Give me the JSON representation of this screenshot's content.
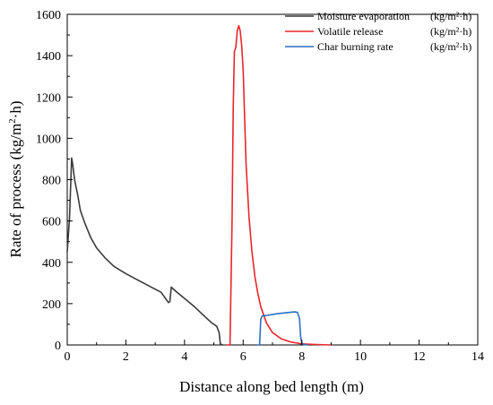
{
  "chart_data": {
    "type": "line",
    "xlabel": "Distance along bed length (m)",
    "ylabel_main": "Rate of process (kg/m",
    "ylabel_sup": "2",
    "ylabel_tail": "·h)",
    "xlim": [
      0,
      14
    ],
    "ylim": [
      0,
      1600
    ],
    "x_ticks": [
      "0",
      "2",
      "4",
      "6",
      "8",
      "10",
      "12",
      "14"
    ],
    "y_ticks": [
      "0",
      "200",
      "400",
      "600",
      "800",
      "1000",
      "1200",
      "1400",
      "1600"
    ],
    "grid": false,
    "legend_position": "top-right",
    "series": [
      {
        "name": "Moisture evaporation",
        "unit": "(kg/m²·h)",
        "color": "#3a3a3a",
        "points": [
          [
            0,
            450
          ],
          [
            0.08,
            620
          ],
          [
            0.15,
            905
          ],
          [
            0.18,
            880
          ],
          [
            0.25,
            800
          ],
          [
            0.35,
            730
          ],
          [
            0.45,
            650
          ],
          [
            0.6,
            590
          ],
          [
            0.8,
            520
          ],
          [
            1.0,
            470
          ],
          [
            1.3,
            420
          ],
          [
            1.6,
            380
          ],
          [
            2.0,
            345
          ],
          [
            2.4,
            315
          ],
          [
            2.8,
            285
          ],
          [
            3.2,
            255
          ],
          [
            3.45,
            205
          ],
          [
            3.5,
            210
          ],
          [
            3.55,
            280
          ],
          [
            3.7,
            260
          ],
          [
            4.0,
            225
          ],
          [
            4.3,
            190
          ],
          [
            4.6,
            150
          ],
          [
            4.9,
            110
          ],
          [
            5.1,
            90
          ],
          [
            5.18,
            60
          ],
          [
            5.22,
            5
          ],
          [
            5.3,
            0
          ]
        ]
      },
      {
        "name": "Volatile release",
        "unit": "(kg/m²·h)",
        "color": "#e8262a",
        "points": [
          [
            5.45,
            0
          ],
          [
            5.55,
            0
          ],
          [
            5.62,
            600
          ],
          [
            5.66,
            1150
          ],
          [
            5.7,
            1420
          ],
          [
            5.75,
            1440
          ],
          [
            5.8,
            1520
          ],
          [
            5.85,
            1545
          ],
          [
            5.9,
            1520
          ],
          [
            5.95,
            1450
          ],
          [
            6.0,
            1330
          ],
          [
            6.05,
            1100
          ],
          [
            6.1,
            870
          ],
          [
            6.2,
            620
          ],
          [
            6.3,
            450
          ],
          [
            6.4,
            330
          ],
          [
            6.5,
            250
          ],
          [
            6.6,
            185
          ],
          [
            6.8,
            105
          ],
          [
            7.0,
            60
          ],
          [
            7.3,
            30
          ],
          [
            7.6,
            15
          ],
          [
            8.0,
            5
          ],
          [
            8.5,
            2
          ],
          [
            9.0,
            0
          ]
        ]
      },
      {
        "name": "Char burning rate",
        "unit": "(kg/m²·h)",
        "color": "#2a6fc4",
        "points": [
          [
            6.5,
            0
          ],
          [
            6.56,
            0
          ],
          [
            6.6,
            125
          ],
          [
            6.65,
            140
          ],
          [
            6.8,
            143
          ],
          [
            7.0,
            148
          ],
          [
            7.2,
            152
          ],
          [
            7.4,
            155
          ],
          [
            7.6,
            158
          ],
          [
            7.75,
            160
          ],
          [
            7.85,
            158
          ],
          [
            7.92,
            130
          ],
          [
            7.96,
            40
          ],
          [
            8.0,
            10
          ],
          [
            8.05,
            2
          ],
          [
            8.2,
            0
          ]
        ]
      }
    ]
  }
}
